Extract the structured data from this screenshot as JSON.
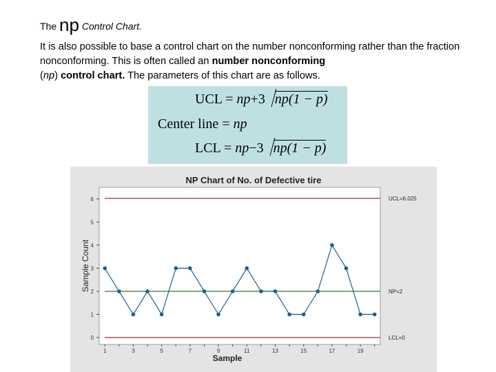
{
  "heading": {
    "prefix": "The",
    "np": "np",
    "suffix": "Control Chart."
  },
  "paragraph": {
    "part1": "It is also possible to base a control chart on the number nonconforming rather than the fraction nonconforming. This is often called an ",
    "bold1": "number nonconforming",
    "paren_open": "(",
    "np_italic": "np",
    "paren_close": ")",
    "bold2": " control chart.",
    "part2": " The parameters of this chart are as follows."
  },
  "formulas": {
    "ucl_label": "UCL",
    "eq": "=",
    "np": "np",
    "plus": "+",
    "minus": "−",
    "three": "3",
    "sqrt_content": "np(1 − p)",
    "center_label": "Center line",
    "lcl_label": "LCL"
  },
  "chart_data": {
    "type": "line",
    "title": "NP Chart of No. of Defective tire",
    "xlabel": "Sample",
    "ylabel": "Sample Count",
    "x": [
      1,
      2,
      3,
      4,
      5,
      6,
      7,
      8,
      9,
      10,
      11,
      12,
      13,
      14,
      15,
      16,
      17,
      18,
      19,
      20
    ],
    "values": [
      3,
      2,
      1,
      2,
      1,
      3,
      3,
      2,
      1,
      2,
      3,
      2,
      2,
      1,
      1,
      2,
      4,
      3,
      1,
      1
    ],
    "x_ticks": [
      1,
      3,
      5,
      7,
      9,
      11,
      13,
      15,
      17,
      19
    ],
    "y_ticks": [
      0,
      1,
      2,
      3,
      4,
      5,
      6
    ],
    "ylim": [
      -0.3,
      6.5
    ],
    "xlim": [
      0.6,
      20.4
    ],
    "ucl": 6.025,
    "center": 2,
    "lcl": 0,
    "ucl_label": "UCL=6.025",
    "center_label": "NP=2",
    "lcl_label": "LCL=0",
    "line_color": "#1f5e8c",
    "limit_color": "#8b1a1a",
    "center_color": "#2e7d32"
  }
}
